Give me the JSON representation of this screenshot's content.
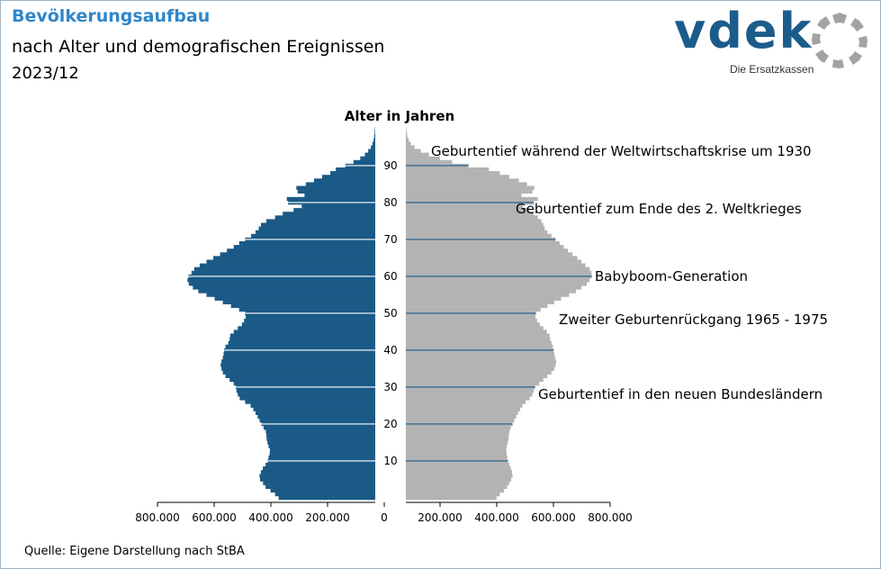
{
  "header": {
    "title": "Bevölkerungsaufbau",
    "subtitle": "nach Alter und demografischen Ereignissen",
    "period": "2023/12"
  },
  "logo": {
    "wordmark": "vdek",
    "tagline": "Die Ersatzkassen",
    "colors": {
      "brand": "#1c5c8a",
      "ring": "#a3a3a3"
    }
  },
  "footer": {
    "source": "Quelle: Eigene Darstellung nach StBA"
  },
  "colors": {
    "male": "#1b5a86",
    "female": "#b3b3b3",
    "axis": "#000000"
  },
  "chart_data": {
    "type": "bar",
    "orientation": "horizontal-pyramid",
    "center_label": "Alter in Jahren",
    "age_ticks": [
      10,
      20,
      30,
      40,
      50,
      60,
      70,
      80,
      90
    ],
    "x_ticks": [
      "800.000",
      "600.000",
      "400.000",
      "200.000",
      "0",
      "200.000",
      "400.000",
      "600.000",
      "800.000"
    ],
    "xlim": [
      0,
      800000
    ],
    "ages": [
      0,
      1,
      2,
      3,
      4,
      5,
      6,
      7,
      8,
      9,
      10,
      11,
      12,
      13,
      14,
      15,
      16,
      17,
      18,
      19,
      20,
      21,
      22,
      23,
      24,
      25,
      26,
      27,
      28,
      29,
      30,
      31,
      32,
      33,
      34,
      35,
      36,
      37,
      38,
      39,
      40,
      41,
      42,
      43,
      44,
      45,
      46,
      47,
      48,
      49,
      50,
      51,
      52,
      53,
      54,
      55,
      56,
      57,
      58,
      59,
      60,
      61,
      62,
      63,
      64,
      65,
      66,
      67,
      68,
      69,
      70,
      71,
      72,
      73,
      74,
      75,
      76,
      77,
      78,
      79,
      80,
      81,
      82,
      83,
      84,
      85,
      86,
      87,
      88,
      89,
      90,
      91,
      92,
      93,
      94,
      95,
      96,
      97,
      98,
      99,
      100
    ],
    "series": [
      {
        "side": "left",
        "values": [
          355000,
          368000,
          385000,
          403000,
          412000,
          423000,
          425000,
          420000,
          413000,
          403000,
          395000,
          392000,
          388000,
          387000,
          392000,
          396000,
          399000,
          400000,
          402000,
          410000,
          418000,
          425000,
          432000,
          440000,
          448000,
          458000,
          478000,
          498000,
          505000,
          510000,
          512000,
          520000,
          535000,
          550000,
          560000,
          565000,
          568000,
          565000,
          560000,
          557000,
          555000,
          550000,
          540000,
          535000,
          533000,
          520000,
          505000,
          490000,
          482000,
          476000,
          478000,
          500000,
          530000,
          560000,
          590000,
          620000,
          650000,
          670000,
          685000,
          690000,
          686000,
          675000,
          665000,
          645000,
          620000,
          595000,
          570000,
          545000,
          520000,
          500000,
          478000,
          456000,
          440000,
          428000,
          420000,
          400000,
          368000,
          340000,
          300000,
          270000,
          320000,
          325000,
          260000,
          285000,
          290000,
          255000,
          225000,
          195000,
          165000,
          145000,
          110000,
          80000,
          55000,
          38000,
          26000,
          16000,
          10000,
          6000,
          3500,
          2000,
          1200
        ]
      },
      {
        "side": "right",
        "values": [
          333000,
          345000,
          360000,
          372000,
          380000,
          387000,
          392000,
          390000,
          386000,
          380000,
          375000,
          372000,
          370000,
          369000,
          371000,
          374000,
          377000,
          378000,
          381000,
          385000,
          392000,
          398000,
          405000,
          412000,
          420000,
          428000,
          440000,
          455000,
          465000,
          470000,
          475000,
          490000,
          505000,
          520000,
          535000,
          545000,
          550000,
          552000,
          548000,
          545000,
          543000,
          540000,
          535000,
          530000,
          528000,
          518000,
          505000,
          492000,
          482000,
          476000,
          478000,
          495000,
          520000,
          545000,
          570000,
          600000,
          625000,
          645000,
          665000,
          675000,
          683000,
          682000,
          675000,
          660000,
          645000,
          630000,
          612000,
          595000,
          580000,
          565000,
          550000,
          535000,
          520000,
          510000,
          505000,
          498000,
          485000,
          470000,
          455000,
          430000,
          470000,
          485000,
          425000,
          465000,
          472000,
          445000,
          415000,
          380000,
          345000,
          305000,
          230000,
          170000,
          125000,
          85000,
          55000,
          32000,
          18000,
          10000,
          5500,
          3000,
          1500
        ]
      }
    ],
    "annotations": [
      "Geburtentief während der Weltwirtschaftskrise um 1930",
      "Geburtentief zum Ende des 2. Weltkrieges",
      "Babyboom-Generation",
      "Zweiter Geburtenrückgang 1965 - 1975",
      "Geburtentief in den neuen Bundesländern"
    ],
    "annotation_ages": [
      90,
      80,
      60,
      50,
      30
    ]
  }
}
